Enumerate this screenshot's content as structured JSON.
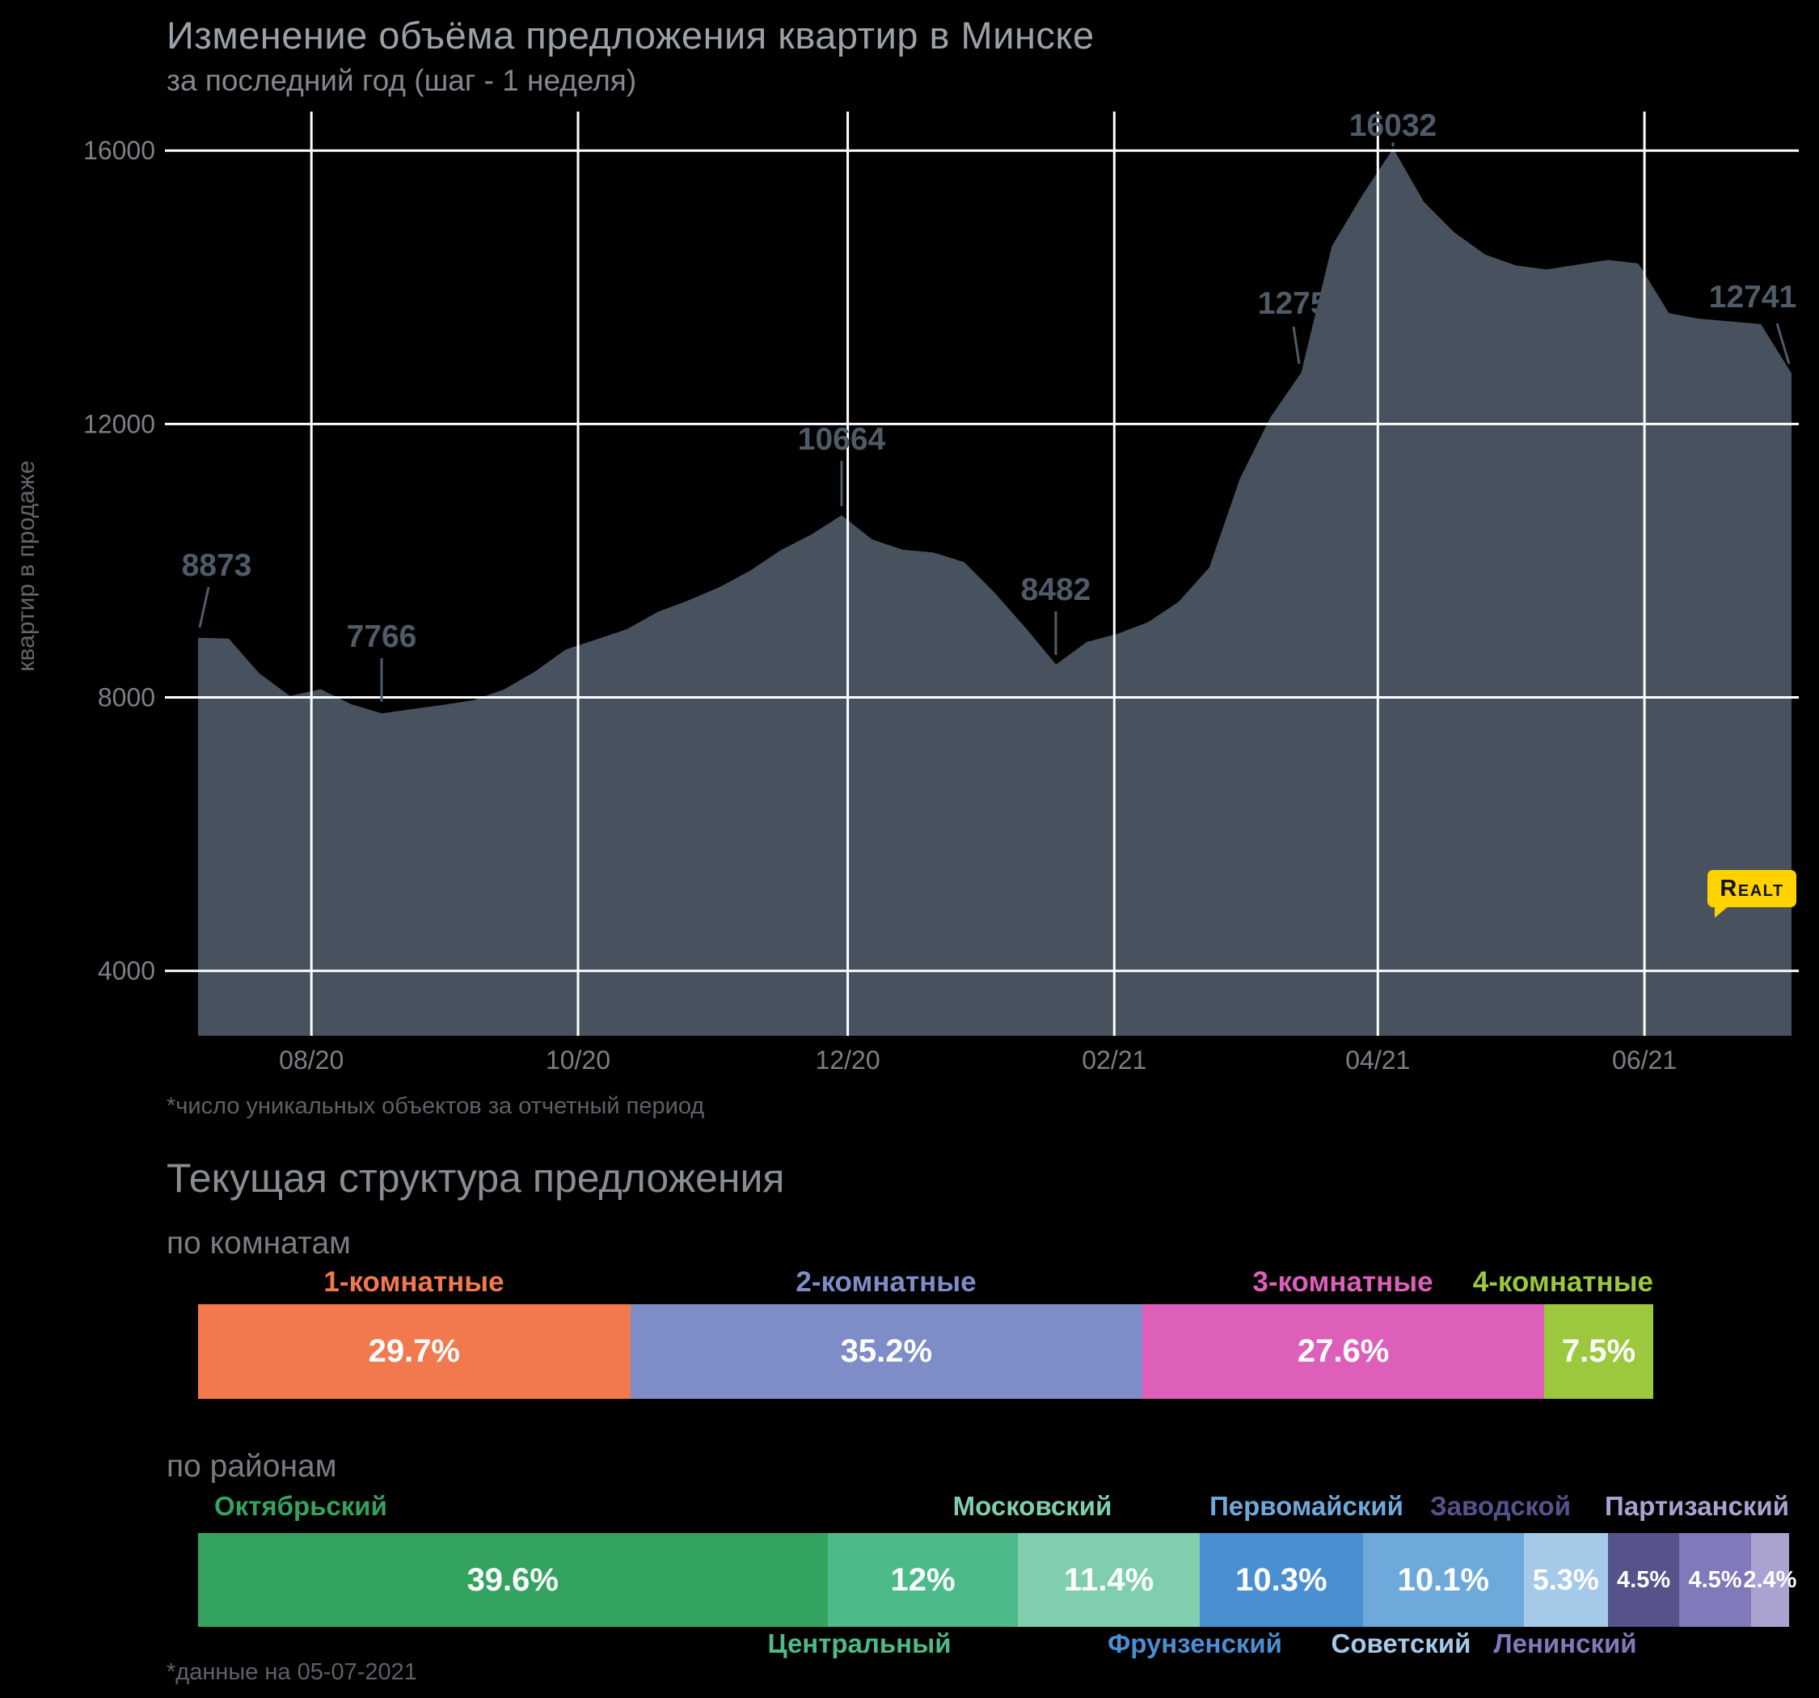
{
  "chart_data": {
    "type": "area",
    "title": "Изменение объёма предложения квартир в Минске",
    "subtitle": "за последний год (шаг - 1 неделя)",
    "ylabel": "квартир в продаже",
    "xlabel": "",
    "x_step": "1 неделя",
    "y_ticks": [
      4000,
      8000,
      12000,
      16000
    ],
    "ylim": [
      3050,
      16570
    ],
    "x_ticks": [
      {
        "label": "08/20",
        "pos": 3.7
      },
      {
        "label": "10/20",
        "pos": 12.4
      },
      {
        "label": "12/20",
        "pos": 21.2
      },
      {
        "label": "02/21",
        "pos": 29.9
      },
      {
        "label": "04/21",
        "pos": 38.5
      },
      {
        "label": "06/21",
        "pos": 47.2
      }
    ],
    "values": [
      8873,
      8860,
      8350,
      8020,
      8120,
      7900,
      7766,
      7830,
      7890,
      7960,
      8120,
      8380,
      8700,
      8850,
      9000,
      9250,
      9420,
      9610,
      9850,
      10150,
      10380,
      10664,
      10310,
      10160,
      10120,
      9980,
      9530,
      9020,
      8482,
      8810,
      8930,
      9100,
      9400,
      9900,
      11200,
      12100,
      12750,
      14600,
      15350,
      16032,
      15250,
      14800,
      14480,
      14320,
      14260,
      14330,
      14400,
      14350,
      13620,
      13540,
      13500,
      13460,
      12741
    ],
    "annotations": [
      {
        "index": 0,
        "value": 8873
      },
      {
        "index": 6,
        "value": 7766
      },
      {
        "index": 21,
        "value": 10664
      },
      {
        "index": 28,
        "value": 8482
      },
      {
        "index": 36,
        "value": 12750
      },
      {
        "index": 39,
        "value": 16032
      },
      {
        "index": 52,
        "value": 12741
      }
    ],
    "area_color": "#47525e",
    "grid_color": "#ffffff",
    "annotation_color": "#4f5b68",
    "tick_color": "#7b8085",
    "axis_title_color": "#61666b",
    "legend": "none",
    "grid": "on"
  },
  "chart_footnote": "*число уникальных объектов за отчетный период",
  "structure": {
    "title": "Текущая структура предложения",
    "rooms": {
      "label": "по комнатам",
      "segments": [
        {
          "name": "1-комнатные",
          "value": 29.7,
          "display": "29.7%",
          "color": "#f2794d"
        },
        {
          "name": "2-комнатные",
          "value": 35.2,
          "display": "35.2%",
          "color": "#7e8cc7"
        },
        {
          "name": "3-комнатные",
          "value": 27.6,
          "display": "27.6%",
          "color": "#de5fb9"
        },
        {
          "name": "4-комнатные",
          "value": 7.5,
          "display": "7.5%",
          "color": "#9bc83d"
        }
      ]
    },
    "districts": {
      "label": "по районам",
      "segments": [
        {
          "name": "Октябрьский",
          "value": 39.6,
          "display": "39.6%",
          "color": "#33a35f"
        },
        {
          "name": "Центральный",
          "value": 12,
          "display": "12%",
          "color": "#4cba89"
        },
        {
          "name": "Московский",
          "value": 11.4,
          "display": "11.4%",
          "color": "#7fceae"
        },
        {
          "name": "Фрунзенский",
          "value": 10.3,
          "display": "10.3%",
          "color": "#4a8fd2"
        },
        {
          "name": "Первомайский",
          "value": 10.1,
          "display": "10.1%",
          "color": "#6ea9dc"
        },
        {
          "name": "Советский",
          "value": 5.3,
          "display": "5.3%",
          "color": "#a5c9e8"
        },
        {
          "name": "Заводской",
          "value": 4.5,
          "display": "4.5%",
          "color": "#55538a"
        },
        {
          "name": "Ленинский",
          "value": 4.5,
          "display": "4.5%",
          "color": "#8079ba"
        },
        {
          "name": "Партизанский",
          "value": 2.4,
          "display": "2.4%",
          "color": "#aaa3d2"
        }
      ]
    },
    "footnote": "*данные на 05-07-2021"
  },
  "logo": {
    "text": "Realt",
    "bg_color": "#ffd200"
  }
}
